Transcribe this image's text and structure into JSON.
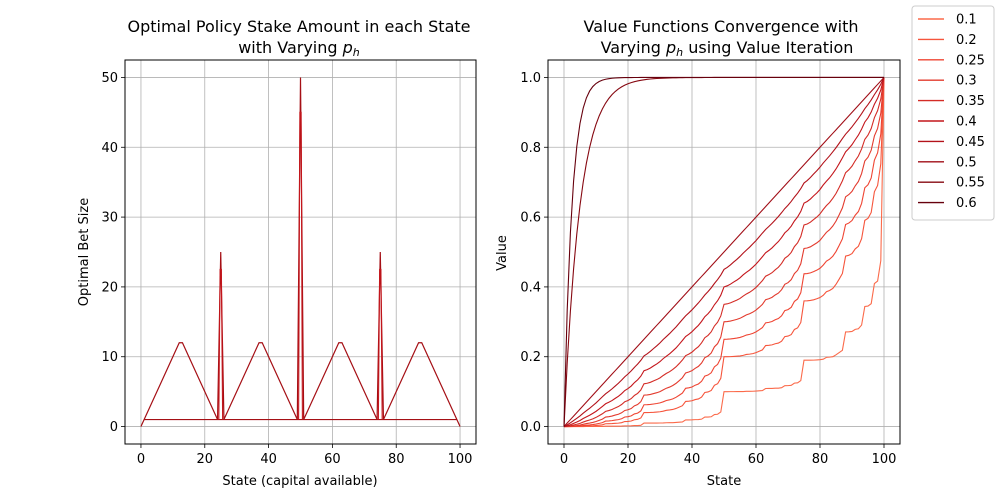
{
  "chart_data": [
    {
      "type": "line",
      "title_line1": "Optimal Policy Stake Amount in each State",
      "title_line2_prefix": "with Varying ",
      "title_var": "p",
      "title_sub": "h",
      "xlabel": "State (capital available)",
      "ylabel": "Optimal Bet Size",
      "xlim": [
        -5,
        105
      ],
      "ylim": [
        -2.5,
        52.5
      ],
      "xticks": [
        0,
        20,
        40,
        60,
        80,
        100
      ],
      "yticks": [
        0,
        10,
        20,
        30,
        40,
        50
      ],
      "grid": true,
      "line_color": "#a50f15",
      "series_description": "Optimal stakes for states 0-100: triangular ramps peaking at 12 near states 12-13, 37-38, 62-63 and 87-88; spikes of 25 at states 25 and 75; spike of 50 at state 50; baseline stake of 1 elsewhere; stake 0 at terminal states 0 and 100.",
      "stake_points": [
        [
          0,
          0
        ],
        [
          1,
          1
        ],
        [
          12,
          12
        ],
        [
          13,
          12
        ],
        [
          24,
          1
        ],
        [
          25,
          25
        ],
        [
          26,
          1
        ],
        [
          37,
          12
        ],
        [
          38,
          12
        ],
        [
          49,
          1
        ],
        [
          50,
          50
        ],
        [
          51,
          1
        ],
        [
          62,
          12
        ],
        [
          63,
          12
        ],
        [
          74,
          1
        ],
        [
          75,
          25
        ],
        [
          76,
          1
        ],
        [
          87,
          12
        ],
        [
          88,
          12
        ],
        [
          99,
          1
        ],
        [
          100,
          0
        ]
      ],
      "baseline_stake": 1
    },
    {
      "type": "line",
      "title_line1": "Value Functions Convergence with",
      "title_line2_prefix": "Varying ",
      "title_var": "p",
      "title_sub": "h",
      "title_line2_suffix": " using Value Iteration",
      "xlabel": "State",
      "ylabel": "Value",
      "xlim": [
        -5,
        105
      ],
      "ylim": [
        -0.05,
        1.05
      ],
      "xticks": [
        0,
        20,
        40,
        60,
        80,
        100
      ],
      "yticks": [
        0.0,
        0.2,
        0.4,
        0.6,
        0.8,
        1.0
      ],
      "ytick_labels": [
        "0.0",
        "0.2",
        "0.4",
        "0.6",
        "0.8",
        "1.0"
      ],
      "grid": true,
      "legend_position": "outside-top-right",
      "series": [
        {
          "name": "0.1",
          "p": 0.1,
          "color": "#fb6a4a"
        },
        {
          "name": "0.2",
          "p": 0.2,
          "color": "#f6553c"
        },
        {
          "name": "0.25",
          "p": 0.25,
          "color": "#ef4533"
        },
        {
          "name": "0.3",
          "p": 0.3,
          "color": "#e33b2e"
        },
        {
          "name": "0.35",
          "p": 0.35,
          "color": "#d42c26"
        },
        {
          "name": "0.4",
          "p": 0.4,
          "color": "#c4161c"
        },
        {
          "name": "0.45",
          "p": 0.45,
          "color": "#b3121a"
        },
        {
          "name": "0.5",
          "p": 0.5,
          "color": "#a10e17"
        },
        {
          "name": "0.55",
          "p": 0.55,
          "color": "#860811"
        },
        {
          "name": "0.6",
          "p": 0.6,
          "color": "#67000d"
        }
      ]
    }
  ]
}
